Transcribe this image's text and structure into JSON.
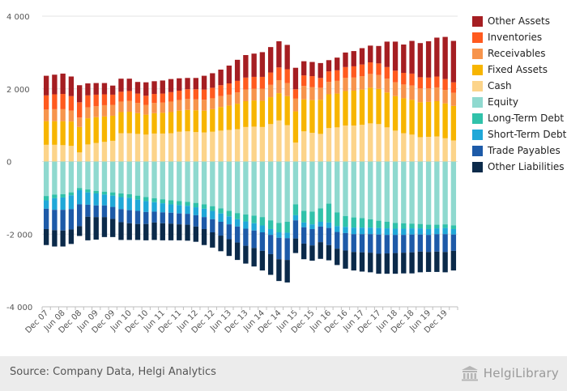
{
  "chart_data": {
    "type": "bar",
    "stacked": true,
    "x": [
      "Dec 07",
      "Mar 08",
      "Jun 08",
      "Sep 08",
      "Dec 08",
      "Mar 09",
      "Jun 09",
      "Sep 09",
      "Dec 09",
      "Mar 10",
      "Jun 10",
      "Sep 10",
      "Dec 10",
      "Mar 11",
      "Jun 11",
      "Sep 11",
      "Dec 11",
      "Mar 12",
      "Jun 12",
      "Sep 12",
      "Dec 12",
      "Mar 13",
      "Jun 13",
      "Sep 13",
      "Dec 13",
      "Mar 14",
      "Jun 14",
      "Sep 14",
      "Dec 14",
      "Mar 15",
      "Jun 15",
      "Sep 15",
      "Dec 15",
      "Mar 16",
      "Jun 16",
      "Sep 16",
      "Dec 16",
      "Mar 17",
      "Jun 17",
      "Sep 17",
      "Dec 17",
      "Mar 18",
      "Jun 18",
      "Sep 18",
      "Dec 18",
      "Mar 19",
      "Jun 19",
      "Sep 19",
      "Dec 19",
      "Mar 20"
    ],
    "tick_labels": [
      "Dec 07",
      "Jun 08",
      "Dec 08",
      "Jun 09",
      "Dec 09",
      "Jun 10",
      "Dec 10",
      "Jun 11",
      "Dec 11",
      "Jun 12",
      "Dec 12",
      "Jun 13",
      "Dec 13",
      "Jun 14",
      "Dec 14",
      "Jun 15",
      "Dec 15",
      "Jun 16",
      "Dec 16",
      "Jun 17",
      "Dec 17",
      "Jun 18",
      "Dec 18",
      "Jun 19",
      "Dec 19"
    ],
    "yticks": [
      4000,
      2000,
      0,
      -2000,
      -4000
    ],
    "ytick_labels": [
      "4 000",
      "2 000",
      "0",
      "-2 000",
      "-4 000"
    ],
    "ylim": [
      -4000,
      4000
    ],
    "grid": true,
    "legend_position": "right",
    "assets_series": [
      {
        "name": "Cash",
        "color": "#fcd48a",
        "values": [
          460,
          460,
          450,
          430,
          250,
          470,
          510,
          540,
          570,
          780,
          780,
          760,
          740,
          770,
          770,
          780,
          820,
          830,
          810,
          800,
          820,
          850,
          870,
          890,
          950,
          960,
          950,
          1030,
          1130,
          1000,
          520,
          830,
          790,
          760,
          920,
          940,
          990,
          990,
          1010,
          1050,
          1030,
          940,
          850,
          780,
          740,
          670,
          680,
          690,
          640,
          580
        ]
      },
      {
        "name": "Fixed Assets",
        "color": "#f7b500",
        "values": [
          650,
          650,
          660,
          670,
          700,
          720,
          710,
          700,
          690,
          580,
          590,
          570,
          550,
          560,
          570,
          580,
          580,
          590,
          600,
          600,
          620,
          650,
          670,
          700,
          710,
          720,
          720,
          740,
          750,
          800,
          860,
          880,
          900,
          940,
          930,
          930,
          950,
          960,
          970,
          980,
          970,
          960,
          950,
          960,
          960,
          960,
          960,
          970,
          960,
          950
        ]
      },
      {
        "name": "Receivables",
        "color": "#f7944c",
        "values": [
          320,
          330,
          330,
          300,
          260,
          300,
          300,
          310,
          300,
          290,
          300,
          280,
          270,
          280,
          280,
          290,
          290,
          300,
          300,
          300,
          300,
          300,
          300,
          310,
          320,
          320,
          330,
          340,
          360,
          360,
          350,
          370,
          360,
          330,
          340,
          350,
          360,
          360,
          370,
          380,
          380,
          380,
          380,
          380,
          390,
          380,
          370,
          380,
          370,
          360
        ]
      },
      {
        "name": "Inventories",
        "color": "#ff5a1f",
        "values": [
          390,
          410,
          420,
          400,
          420,
          330,
          320,
          300,
          280,
          270,
          270,
          260,
          250,
          250,
          250,
          260,
          260,
          270,
          280,
          280,
          290,
          300,
          310,
          320,
          330,
          330,
          330,
          340,
          350,
          380,
          260,
          290,
          300,
          270,
          290,
          290,
          300,
          310,
          320,
          320,
          320,
          320,
          320,
          320,
          330,
          310,
          300,
          300,
          300,
          290
        ]
      },
      {
        "name": "Other Assets",
        "color": "#a51e22",
        "values": [
          540,
          540,
          560,
          540,
          470,
          330,
          320,
          310,
          250,
          360,
          340,
          320,
          370,
          350,
          360,
          360,
          340,
          310,
          310,
          380,
          400,
          430,
          490,
          580,
          620,
          640,
          680,
          700,
          720,
          670,
          590,
          390,
          390,
          410,
          310,
          350,
          400,
          420,
          450,
          460,
          480,
          700,
          800,
          780,
          900,
          940,
          1000,
          1070,
          1160,
          1140
        ]
      }
    ],
    "liabilities_series": [
      {
        "name": "Equity",
        "color": "#8fd9cf",
        "values": [
          950,
          910,
          900,
          850,
          730,
          770,
          810,
          830,
          850,
          880,
          900,
          940,
          980,
          1010,
          1040,
          1070,
          1090,
          1110,
          1140,
          1180,
          1230,
          1290,
          1360,
          1420,
          1460,
          1490,
          1530,
          1620,
          1690,
          1660,
          1180,
          1360,
          1380,
          1290,
          1160,
          1400,
          1500,
          1540,
          1560,
          1590,
          1630,
          1660,
          1690,
          1700,
          1710,
          1720,
          1740,
          1740,
          1730,
          1760
        ]
      },
      {
        "name": "Long-Term Debt",
        "color": "#30c2aa",
        "values": [
          120,
          100,
          90,
          80,
          60,
          80,
          70,
          80,
          90,
          100,
          100,
          110,
          110,
          110,
          110,
          110,
          110,
          110,
          120,
          120,
          130,
          140,
          150,
          170,
          190,
          210,
          230,
          240,
          260,
          300,
          300,
          320,
          350,
          370,
          520,
          380,
          300,
          280,
          260,
          230,
          200,
          180,
          160,
          150,
          130,
          120,
          120,
          100,
          100,
          100
        ]
      },
      {
        "name": "Short-Term Debt",
        "color": "#20a8d8",
        "values": [
          230,
          320,
          340,
          380,
          390,
          340,
          330,
          300,
          310,
          330,
          340,
          310,
          300,
          260,
          250,
          230,
          230,
          220,
          220,
          230,
          230,
          230,
          220,
          200,
          200,
          200,
          190,
          160,
          150,
          150,
          140,
          130,
          130,
          130,
          150,
          160,
          170,
          180,
          180,
          180,
          180,
          180,
          170,
          170,
          170,
          170,
          160,
          160,
          170,
          150
        ]
      },
      {
        "name": "Trade Payables",
        "color": "#1d5aa8",
        "values": [
          560,
          560,
          570,
          560,
          600,
          330,
          320,
          320,
          330,
          360,
          360,
          360,
          330,
          300,
          300,
          300,
          300,
          300,
          310,
          330,
          360,
          380,
          410,
          440,
          470,
          480,
          510,
          530,
          590,
          600,
          500,
          450,
          450,
          430,
          470,
          460,
          480,
          490,
          500,
          510,
          530,
          510,
          500,
          490,
          490,
          470,
          470,
          480,
          490,
          450
        ]
      },
      {
        "name": "Other Liabilities",
        "color": "#0b2a4a",
        "values": [
          440,
          450,
          440,
          400,
          270,
          650,
          620,
          550,
          500,
          490,
          460,
          440,
          450,
          480,
          470,
          460,
          440,
          440,
          420,
          440,
          420,
          430,
          460,
          480,
          490,
          510,
          540,
          570,
          600,
          620,
          400,
          430,
          420,
          460,
          420,
          450,
          500,
          510,
          530,
          540,
          550,
          560,
          570,
          570,
          580,
          570,
          550,
          560,
          560,
          540
        ]
      }
    ]
  },
  "legend": [
    {
      "label": "Other Assets",
      "color": "#a51e22"
    },
    {
      "label": "Inventories",
      "color": "#ff5a1f"
    },
    {
      "label": "Receivables",
      "color": "#f7944c"
    },
    {
      "label": "Fixed Assets",
      "color": "#f7b500"
    },
    {
      "label": "Cash",
      "color": "#fcd48a"
    },
    {
      "label": "Equity",
      "color": "#8fd9cf"
    },
    {
      "label": "Long-Term Debt",
      "color": "#30c2aa"
    },
    {
      "label": "Short-Term Debt",
      "color": "#20a8d8"
    },
    {
      "label": "Trade Payables",
      "color": "#1d5aa8"
    },
    {
      "label": "Other Liabilities",
      "color": "#0b2a4a"
    }
  ],
  "footer": {
    "source": "Source: Company Data, Helgi Analytics",
    "brand": "HelgiLibrary",
    "brand_icon": "library-building-icon"
  }
}
